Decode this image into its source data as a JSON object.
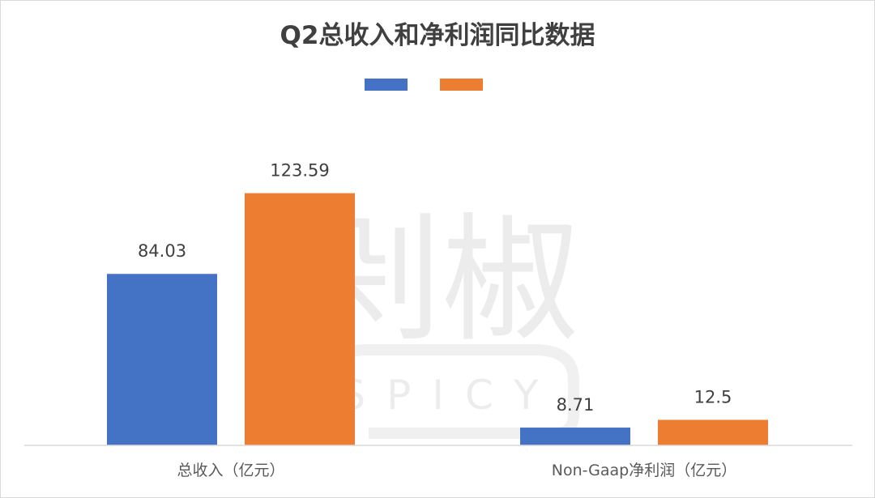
{
  "chart_data": {
    "type": "bar",
    "title": "Q2总收入和净利润同比数据",
    "categories": [
      "总收入（亿元）",
      "Non-Gaap净利润（亿元）"
    ],
    "series": [
      {
        "name": "",
        "color": "#4472c4",
        "values": [
          84.03,
          8.71
        ],
        "labels": [
          "84.03",
          "8.71"
        ]
      },
      {
        "name": "",
        "color": "#ed7d31",
        "values": [
          123.59,
          12.5
        ],
        "labels": [
          "123.59",
          "12.5"
        ]
      }
    ],
    "ylim": [
      0,
      150
    ],
    "grid": false,
    "legend_position": "top-center",
    "xlabel": "",
    "ylabel": ""
  },
  "watermark": {
    "main": "剁椒",
    "sub": "SPICY"
  }
}
